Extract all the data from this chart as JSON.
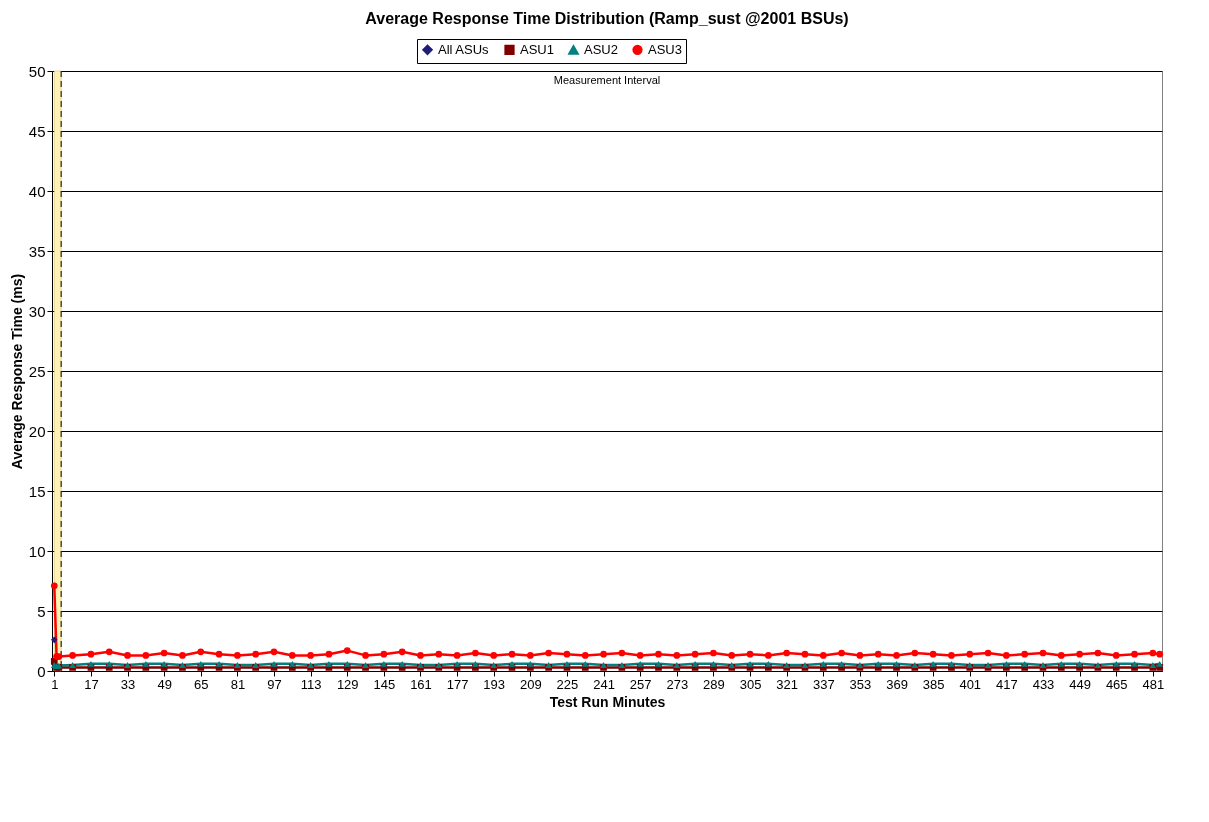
{
  "chart_data": {
    "type": "line",
    "title": "Average Response Time Distribution (Ramp_sust @2001 BSUs)",
    "xlabel": "Test Run Minutes",
    "ylabel": "Average Response Time (ms)",
    "xlim": [
      0,
      485
    ],
    "xticks": [
      1,
      17,
      33,
      49,
      65,
      81,
      97,
      113,
      129,
      145,
      161,
      177,
      193,
      209,
      225,
      241,
      257,
      273,
      289,
      305,
      321,
      337,
      353,
      369,
      385,
      401,
      417,
      433,
      449,
      465,
      481
    ],
    "ylim": [
      0,
      50
    ],
    "yticks": [
      0,
      5,
      10,
      15,
      20,
      25,
      30,
      35,
      40,
      45,
      50
    ],
    "grid": "y",
    "legend": "top",
    "line_style": "solid",
    "x": [
      1,
      2,
      3,
      9,
      17,
      25,
      33,
      41,
      49,
      57,
      65,
      73,
      81,
      89,
      97,
      105,
      113,
      121,
      129,
      137,
      145,
      153,
      161,
      169,
      177,
      185,
      193,
      201,
      209,
      217,
      225,
      233,
      241,
      249,
      257,
      265,
      273,
      281,
      289,
      297,
      305,
      313,
      321,
      329,
      337,
      345,
      353,
      361,
      369,
      377,
      385,
      393,
      401,
      409,
      417,
      425,
      433,
      441,
      449,
      457,
      465,
      473,
      481,
      484
    ],
    "bands": [
      {
        "axis": "x",
        "from": 1,
        "to": 4,
        "color": "#fff2b3"
      }
    ],
    "ref_lines": [
      {
        "axis": "x",
        "value": 4,
        "color": "#000000",
        "line_style": "dashed"
      }
    ],
    "annotations": [
      "Measurement Interval"
    ],
    "series": [
      {
        "name": "All ASUs",
        "color": "#1f1f7a",
        "marker": "diamond",
        "x": [
          1
        ],
        "values": [
          2.6
        ]
      },
      {
        "name": "ASU1",
        "color": "#800000",
        "marker": "square",
        "values": [
          0.8,
          0.3,
          0.3,
          0.3,
          0.3,
          0.3,
          0.3,
          0.3,
          0.3,
          0.3,
          0.3,
          0.3,
          0.3,
          0.3,
          0.3,
          0.3,
          0.3,
          0.3,
          0.3,
          0.3,
          0.3,
          0.3,
          0.3,
          0.3,
          0.3,
          0.3,
          0.3,
          0.3,
          0.3,
          0.3,
          0.3,
          0.3,
          0.3,
          0.3,
          0.3,
          0.3,
          0.3,
          0.3,
          0.3,
          0.3,
          0.3,
          0.3,
          0.3,
          0.3,
          0.3,
          0.3,
          0.3,
          0.3,
          0.3,
          0.3,
          0.3,
          0.3,
          0.3,
          0.3,
          0.3,
          0.3,
          0.3,
          0.3,
          0.3,
          0.3,
          0.3,
          0.3,
          0.3,
          0.3
        ]
      },
      {
        "name": "ASU2",
        "color": "#008080",
        "marker": "triangle",
        "values": [
          0.5,
          0.4,
          0.45,
          0.5,
          0.6,
          0.6,
          0.5,
          0.6,
          0.6,
          0.5,
          0.6,
          0.6,
          0.5,
          0.5,
          0.6,
          0.6,
          0.5,
          0.6,
          0.6,
          0.5,
          0.6,
          0.6,
          0.5,
          0.5,
          0.6,
          0.6,
          0.5,
          0.6,
          0.6,
          0.5,
          0.6,
          0.6,
          0.5,
          0.5,
          0.6,
          0.6,
          0.5,
          0.6,
          0.6,
          0.5,
          0.6,
          0.6,
          0.5,
          0.5,
          0.6,
          0.6,
          0.5,
          0.6,
          0.6,
          0.5,
          0.6,
          0.6,
          0.5,
          0.5,
          0.6,
          0.6,
          0.5,
          0.6,
          0.6,
          0.5,
          0.6,
          0.6,
          0.5,
          0.6
        ]
      },
      {
        "name": "ASU3",
        "color": "#ff0000",
        "marker": "circle",
        "values": [
          7.1,
          1.2,
          1.2,
          1.3,
          1.4,
          1.6,
          1.3,
          1.3,
          1.5,
          1.3,
          1.6,
          1.4,
          1.3,
          1.4,
          1.6,
          1.3,
          1.3,
          1.4,
          1.7,
          1.3,
          1.4,
          1.6,
          1.3,
          1.4,
          1.3,
          1.5,
          1.3,
          1.4,
          1.3,
          1.5,
          1.4,
          1.3,
          1.4,
          1.5,
          1.3,
          1.4,
          1.3,
          1.4,
          1.5,
          1.3,
          1.4,
          1.3,
          1.5,
          1.4,
          1.3,
          1.5,
          1.3,
          1.4,
          1.3,
          1.5,
          1.4,
          1.3,
          1.4,
          1.5,
          1.3,
          1.4,
          1.5,
          1.3,
          1.4,
          1.5,
          1.3,
          1.4,
          1.5,
          1.4
        ]
      }
    ]
  }
}
